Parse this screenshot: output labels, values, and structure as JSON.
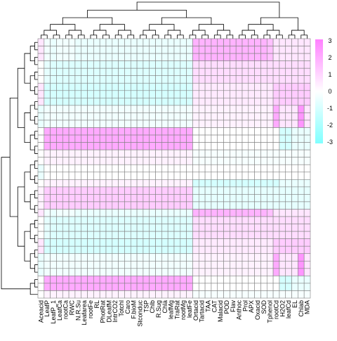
{
  "chart_data": {
    "type": "heatmap",
    "title": "",
    "columns": [
      "Aceacid",
      "LeafP",
      "LeafP_1",
      "LeafCa",
      "rootCa",
      "RWC",
      "N.R.Su",
      "Leafarea",
      "rootFe",
      "RL",
      "PhotRat",
      "DLeafM",
      "IntrCO2",
      "Totchl",
      "Caro",
      "F.bioM",
      "Stconduc",
      "TSP",
      "Chlb",
      "R.Sug",
      "Chla",
      "leafMg",
      "TraRat",
      "rootMg",
      "leafFe",
      "Ortacid",
      "Tartacid",
      "TAA",
      "CAT",
      "Malacid",
      "POD",
      "Flav",
      "Anthoc",
      "Prol",
      "APX",
      "Oxacid",
      "SOD",
      "Tphenol",
      "rootCd",
      "H2O2",
      "leafCd",
      "EL",
      "Chlab",
      "MDA"
    ],
    "row_count": 35,
    "row_groups": [
      3,
      3,
      3,
      3,
      3,
      2,
      2,
      1,
      3,
      1,
      3,
      2,
      3,
      2,
      1
    ],
    "pattern_values": [
      [
        0.6,
        -0.3,
        -0.5,
        -0.3,
        -0.3,
        -0.3,
        -0.5,
        -0.5,
        -0.5,
        -0.5,
        -0.5,
        -0.5,
        -0.5,
        -0.5,
        -0.5,
        -0.5,
        -0.5,
        -0.5,
        -0.5,
        -0.5,
        -0.5,
        -0.5,
        -0.5,
        -0.5,
        -0.5,
        1.8,
        1.8,
        1.8,
        1.8,
        1.8,
        1.8,
        1.8,
        1.8,
        1.8,
        1.8,
        1.8,
        1.8,
        1.5,
        0.6,
        0.6,
        0.6,
        0.6,
        0.6,
        0.6
      ],
      [
        0,
        -0.6,
        -0.8,
        -0.8,
        -0.8,
        -0.8,
        -0.8,
        -0.8,
        -0.8,
        -0.8,
        -0.8,
        -0.8,
        -0.8,
        -0.8,
        -0.8,
        -0.8,
        -0.8,
        -0.8,
        -0.8,
        -0.8,
        -0.8,
        -0.8,
        -0.8,
        -0.8,
        -0.8,
        0.8,
        0.8,
        0.8,
        0.8,
        0.8,
        0.8,
        0.8,
        0.8,
        0.8,
        0.8,
        0.8,
        0.8,
        0.8,
        0.8,
        0.8,
        0.8,
        0.8,
        0.8,
        0.8
      ],
      [
        0.6,
        -1,
        -1,
        -1,
        -1,
        -1,
        -1,
        -1,
        -1,
        -1,
        -1,
        -1,
        -1,
        -1,
        -1,
        -1,
        -1,
        -1,
        -1,
        -1,
        -1,
        -1,
        -1,
        -1,
        -1,
        0.5,
        0.5,
        0.5,
        0.5,
        0.5,
        0.5,
        0.5,
        0.5,
        0.5,
        0.5,
        0.5,
        0.5,
        0.5,
        1.2,
        1.2,
        1.2,
        1.2,
        1.2,
        1.2
      ],
      [
        -0.5,
        -0.3,
        -0.3,
        -0.3,
        -0.3,
        -0.3,
        -0.3,
        -0.3,
        -0.3,
        -0.3,
        -0.3,
        -0.3,
        -0.3,
        -0.3,
        -0.3,
        -0.3,
        -0.3,
        -0.3,
        -0.3,
        -0.3,
        -0.3,
        -0.3,
        -0.3,
        -0.3,
        -0.3,
        0.3,
        0.3,
        0.3,
        0.3,
        0.3,
        0.3,
        0.3,
        0.3,
        0.3,
        0.3,
        0.3,
        0.3,
        0.3,
        2,
        0.6,
        0.6,
        0.6,
        2.5,
        0.6
      ],
      [
        0,
        2,
        2,
        2,
        2,
        2,
        2,
        2,
        2,
        2,
        2,
        2,
        2,
        2,
        2,
        2,
        2,
        2,
        2,
        2,
        2,
        2,
        2,
        2,
        2,
        0,
        0,
        0,
        0,
        0,
        0,
        0,
        0,
        0,
        0,
        0,
        0,
        0,
        0,
        -1,
        -1,
        -0.5,
        -0.5,
        -0.5
      ],
      [
        0,
        0.3,
        0.3,
        0.3,
        0.3,
        0.3,
        0.3,
        0.3,
        0.3,
        0.3,
        0.3,
        0.3,
        0.3,
        0.3,
        0.3,
        0.3,
        0.3,
        0.3,
        0.3,
        0.3,
        0.3,
        0.3,
        0.3,
        0.3,
        0.3,
        -0.2,
        -0.2,
        -0.2,
        -0.2,
        -0.2,
        -0.2,
        -0.2,
        -0.2,
        -0.2,
        -0.2,
        -0.2,
        -0.2,
        -0.2,
        -0.2,
        -0.2,
        -0.2,
        -0.2,
        -0.2,
        -0.2
      ],
      [
        -0.5,
        0,
        0,
        0,
        0,
        0,
        0,
        0,
        0,
        0,
        0,
        0,
        0,
        0,
        0,
        0,
        0,
        0,
        0,
        0,
        0,
        0,
        0,
        0,
        0,
        0,
        0,
        0,
        0,
        0,
        0,
        0,
        0,
        0,
        0,
        0,
        0,
        0,
        0,
        0,
        0,
        0,
        0,
        0
      ],
      [
        0,
        0.3,
        0.3,
        0.3,
        0.3,
        0.3,
        0.3,
        0.3,
        0.3,
        0.3,
        0.3,
        0.3,
        0.3,
        0.3,
        0.3,
        0.3,
        0.3,
        0.3,
        0.3,
        0.3,
        0.3,
        0.3,
        0.3,
        0.3,
        0.3,
        -1,
        -1,
        -1,
        -1,
        -1,
        -1,
        -1,
        -1,
        -1,
        -1,
        -1,
        -1,
        -1,
        -1,
        -0.5,
        -0.5,
        -0.5,
        -0.5,
        -0.5
      ],
      [
        0.3,
        1.2,
        1.2,
        1.2,
        1.2,
        1.2,
        1.2,
        1.2,
        1.2,
        1.2,
        1.2,
        1.2,
        1.2,
        1.2,
        1.2,
        1.2,
        1.2,
        1.2,
        1.2,
        1.2,
        1.2,
        1.2,
        1.2,
        1.2,
        1.2,
        -0.6,
        -0.6,
        -0.6,
        -0.6,
        -0.6,
        -0.6,
        -0.6,
        -0.6,
        -0.6,
        -0.6,
        -0.6,
        -0.6,
        -0.6,
        -0.6,
        -0.6,
        -0.6,
        -0.6,
        -0.6,
        -0.6
      ]
    ],
    "colorbar": {
      "ticks": [
        "3",
        "2",
        "1",
        "0",
        "-1",
        "-2",
        "-3"
      ],
      "range": [
        -3,
        3
      ]
    },
    "colors": {
      "high": "#ff80ff",
      "mid": "#ffffff",
      "low": "#80ffff",
      "grid": "#808080"
    },
    "dendrograms": {
      "rows": true,
      "columns": true
    },
    "legend_position": "right"
  }
}
